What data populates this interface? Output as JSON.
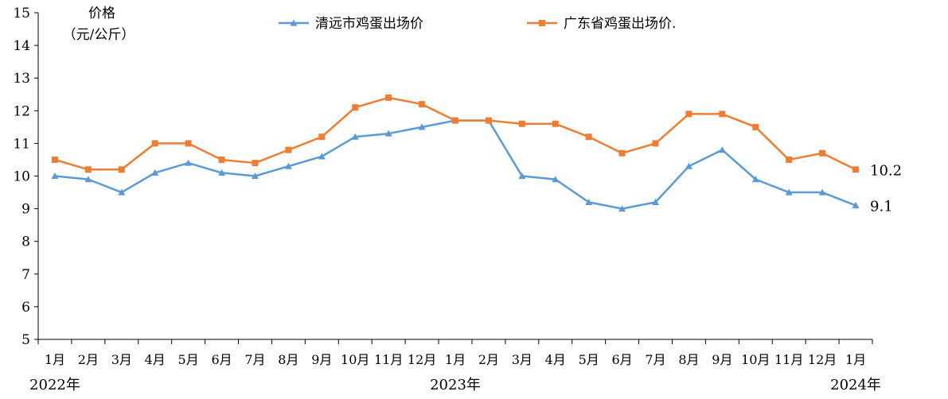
{
  "chart_data": {
    "type": "line",
    "ylabel_line1": "价格",
    "ylabel_line2": "（元/公斤）",
    "ylim": [
      5,
      15
    ],
    "yticks": [
      5,
      6,
      7,
      8,
      9,
      10,
      11,
      12,
      13,
      14,
      15
    ],
    "categories": [
      "1月",
      "2月",
      "3月",
      "4月",
      "5月",
      "6月",
      "7月",
      "8月",
      "9月",
      "10月",
      "11月",
      "12月",
      "1月",
      "2月",
      "3月",
      "4月",
      "5月",
      "6月",
      "7月",
      "8月",
      "9月",
      "10月",
      "11月",
      "12月",
      "1月"
    ],
    "year_labels": [
      {
        "label": "2022年",
        "index": 0
      },
      {
        "label": "2023年",
        "index": 12
      },
      {
        "label": "2024年",
        "index": 24
      }
    ],
    "series": [
      {
        "name": "清远市鸡蛋出场价",
        "color": "#5B9BD5",
        "marker": "triangle",
        "values": [
          10.0,
          9.9,
          9.5,
          10.1,
          10.4,
          10.1,
          10.0,
          10.3,
          10.6,
          11.2,
          11.3,
          11.5,
          11.7,
          11.7,
          10.0,
          9.9,
          9.2,
          9.0,
          9.2,
          10.3,
          10.8,
          9.9,
          9.5,
          9.5,
          9.1
        ],
        "end_label": "9.1"
      },
      {
        "name": "广东省鸡蛋出场价.",
        "color": "#ED7D31",
        "marker": "square",
        "values": [
          10.5,
          10.2,
          10.2,
          11.0,
          11.0,
          10.5,
          10.4,
          10.8,
          11.2,
          12.1,
          12.4,
          12.2,
          11.7,
          11.7,
          11.6,
          11.6,
          11.2,
          10.7,
          11.0,
          11.9,
          11.9,
          11.5,
          10.5,
          10.7,
          10.2
        ],
        "end_label": "10.2"
      }
    ],
    "grid": false,
    "legend_position": "top-center"
  }
}
